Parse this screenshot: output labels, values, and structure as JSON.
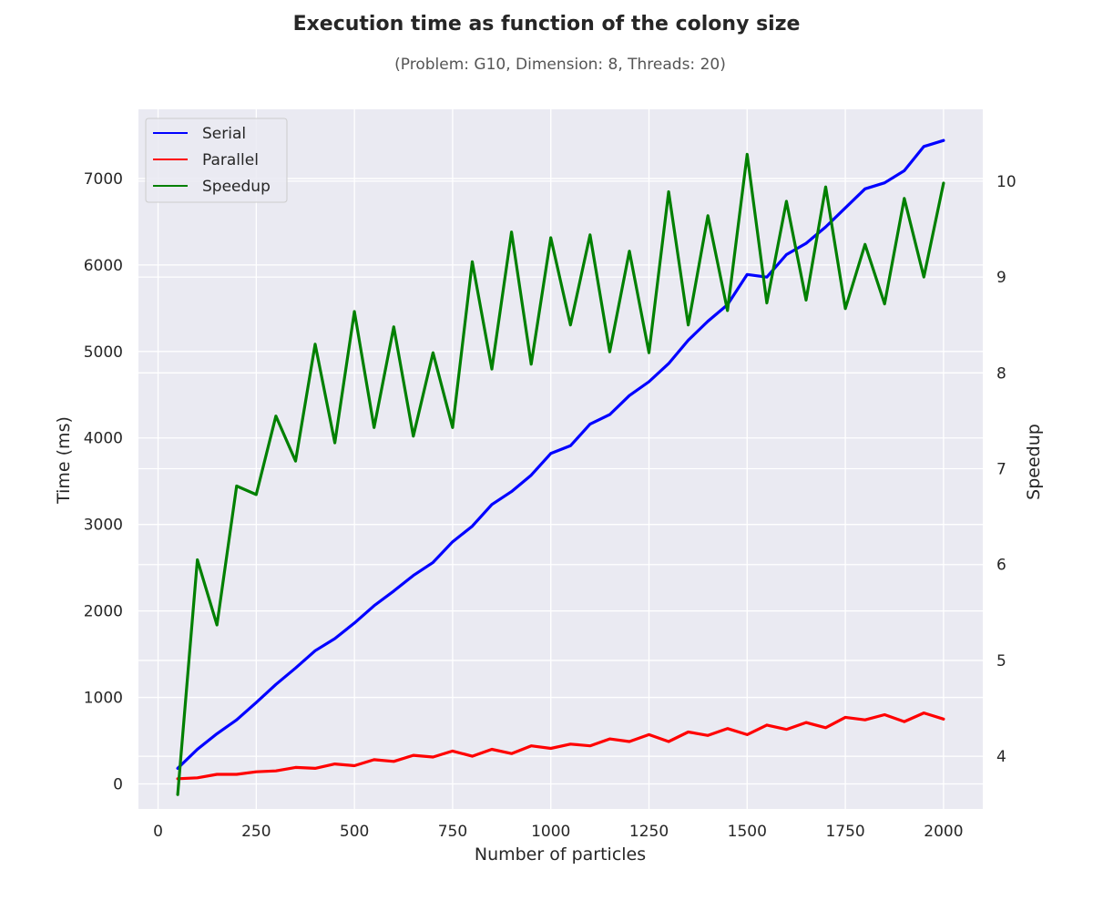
{
  "chart_data": {
    "type": "line",
    "title": "Execution time as function of the colony size",
    "subtitle": "(Problem: G10, Dimension: 8, Threads: 20)",
    "xlabel": "Number of particles",
    "ylabel": "Time (ms)",
    "y2label": "Speedup",
    "xlim": [
      -50,
      2100
    ],
    "ylim": [
      -290,
      7800
    ],
    "y2lim": [
      3.45,
      10.75
    ],
    "xticks": [
      0,
      250,
      500,
      750,
      1000,
      1250,
      1500,
      1750,
      2000
    ],
    "yticks": [
      0,
      1000,
      2000,
      3000,
      4000,
      5000,
      6000,
      7000
    ],
    "y2ticks": [
      4,
      5,
      6,
      7,
      8,
      9,
      10
    ],
    "grid": true,
    "legend_position": "top-left",
    "x": [
      50,
      100,
      150,
      200,
      250,
      300,
      350,
      400,
      450,
      500,
      550,
      600,
      650,
      700,
      750,
      800,
      850,
      900,
      950,
      1000,
      1050,
      1100,
      1150,
      1200,
      1250,
      1300,
      1350,
      1400,
      1450,
      1500,
      1550,
      1600,
      1650,
      1700,
      1750,
      1800,
      1850,
      1900,
      1950,
      2000
    ],
    "series": [
      {
        "name": "Serial",
        "axis": "left",
        "color": "#0000ff",
        "values": [
          180,
          400,
          580,
          740,
          940,
          1150,
          1340,
          1540,
          1680,
          1860,
          2060,
          2230,
          2410,
          2560,
          2800,
          2980,
          3230,
          3380,
          3570,
          3820,
          3910,
          4160,
          4270,
          4490,
          4650,
          4860,
          5130,
          5350,
          5540,
          5890,
          5860,
          6120,
          6250,
          6440,
          6660,
          6880,
          6950,
          7090,
          7370,
          7440
        ]
      },
      {
        "name": "Parallel",
        "axis": "left",
        "color": "#ff0000",
        "values": [
          60,
          70,
          110,
          110,
          140,
          150,
          190,
          180,
          230,
          210,
          280,
          260,
          330,
          310,
          380,
          320,
          400,
          350,
          440,
          410,
          460,
          440,
          520,
          490,
          570,
          490,
          600,
          560,
          640,
          570,
          680,
          630,
          710,
          650,
          770,
          740,
          800,
          720,
          820,
          750
        ]
      },
      {
        "name": "Speedup",
        "axis": "right",
        "color": "#008000",
        "values": [
          3.6,
          6.05,
          5.37,
          6.82,
          6.73,
          7.55,
          7.08,
          8.3,
          7.27,
          8.64,
          7.43,
          8.48,
          7.34,
          8.21,
          7.43,
          9.16,
          8.04,
          9.47,
          8.09,
          9.41,
          8.5,
          9.44,
          8.22,
          9.27,
          8.21,
          9.89,
          8.5,
          9.64,
          8.65,
          10.28,
          8.73,
          9.79,
          8.76,
          9.94,
          8.67,
          9.34,
          8.72,
          9.82,
          9.0,
          9.98
        ]
      }
    ]
  }
}
